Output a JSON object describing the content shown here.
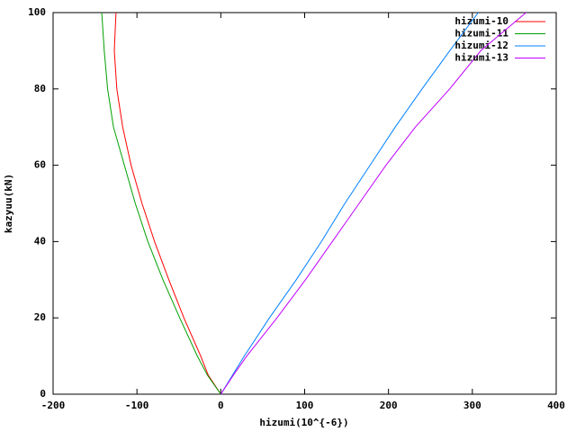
{
  "chart_data": {
    "type": "line",
    "xlabel": "hizumi(10^{-6})",
    "ylabel": "kazyuu(kN)",
    "xlim": [
      -200,
      400
    ],
    "xticks": [
      -200,
      -100,
      0,
      100,
      200,
      300,
      400
    ],
    "ylim": [
      0,
      100
    ],
    "yticks": [
      0,
      20,
      40,
      60,
      80,
      100
    ],
    "legend": "top-right",
    "series": [
      {
        "name": "hizumi-10",
        "color": "#ff0000",
        "x": [
          0,
          -15,
          -24,
          -44,
          -62,
          -79,
          -94,
          -107,
          -117,
          -124,
          -127,
          -125
        ],
        "values": [
          0,
          5,
          10,
          20,
          30,
          40,
          50,
          60,
          70,
          80,
          90,
          100
        ]
      },
      {
        "name": "hizumi-11",
        "color": "#00a000",
        "x": [
          0,
          -16,
          -28,
          -49,
          -69,
          -87,
          -102,
          -115,
          -128,
          -135,
          -139,
          -142
        ],
        "values": [
          0,
          5,
          10,
          20,
          30,
          40,
          50,
          60,
          70,
          80,
          90,
          100
        ]
      },
      {
        "name": "hizumi-12",
        "color": "#0080ff",
        "x": [
          0,
          14,
          28,
          58,
          90,
          120,
          148,
          178,
          208,
          240,
          273,
          307
        ],
        "values": [
          0,
          5,
          10,
          20,
          30,
          40,
          50,
          60,
          70,
          80,
          90,
          100
        ]
      },
      {
        "name": "hizumi-13",
        "color": "#c000ff",
        "x": [
          0,
          15,
          31,
          67,
          101,
          133,
          165,
          197,
          232,
          273,
          310,
          364
        ],
        "values": [
          0,
          5,
          10,
          20,
          30,
          40,
          50,
          60,
          70,
          80,
          90,
          100
        ]
      }
    ]
  }
}
